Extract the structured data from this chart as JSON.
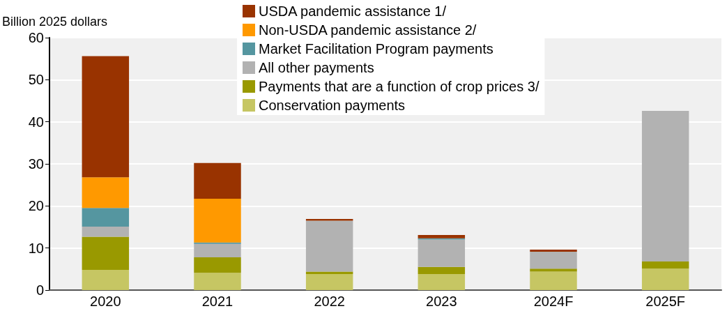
{
  "chart_data": {
    "type": "bar",
    "ylabel": "Billion 2025 dollars",
    "stacked": true,
    "categories": [
      "2020",
      "2021",
      "2022",
      "2023",
      "2024F",
      "2025F"
    ],
    "series": [
      {
        "name": "Conservation payments",
        "color": "#c6c663",
        "values": [
          4.8,
          4.1,
          3.8,
          3.8,
          4.4,
          5.1
        ]
      },
      {
        "name": "Payments that are a function of crop prices 3/",
        "color": "#999900",
        "values": [
          7.9,
          3.7,
          0.6,
          1.7,
          0.7,
          1.7
        ]
      },
      {
        "name": "All other payments",
        "color": "#b2b2b2",
        "values": [
          2.4,
          3.2,
          12.1,
          6.5,
          4.0,
          35.8
        ]
      },
      {
        "name": "Market Facilitation Program payments",
        "color": "#5596a0",
        "values": [
          4.4,
          0.3,
          0,
          0.3,
          0,
          0
        ]
      },
      {
        "name": "Non-USDA pandemic assistance 2/",
        "color": "#ff9900",
        "values": [
          7.3,
          10.4,
          0,
          0,
          0,
          0
        ]
      },
      {
        "name": "USDA pandemic assistance 1/",
        "color": "#993300",
        "values": [
          28.8,
          8.5,
          0.4,
          0.8,
          0.5,
          0
        ]
      }
    ],
    "ylim": [
      0,
      60
    ],
    "yticks": [
      0,
      10,
      20,
      30,
      40,
      50,
      60
    ],
    "grid": "y",
    "legend": "top"
  }
}
